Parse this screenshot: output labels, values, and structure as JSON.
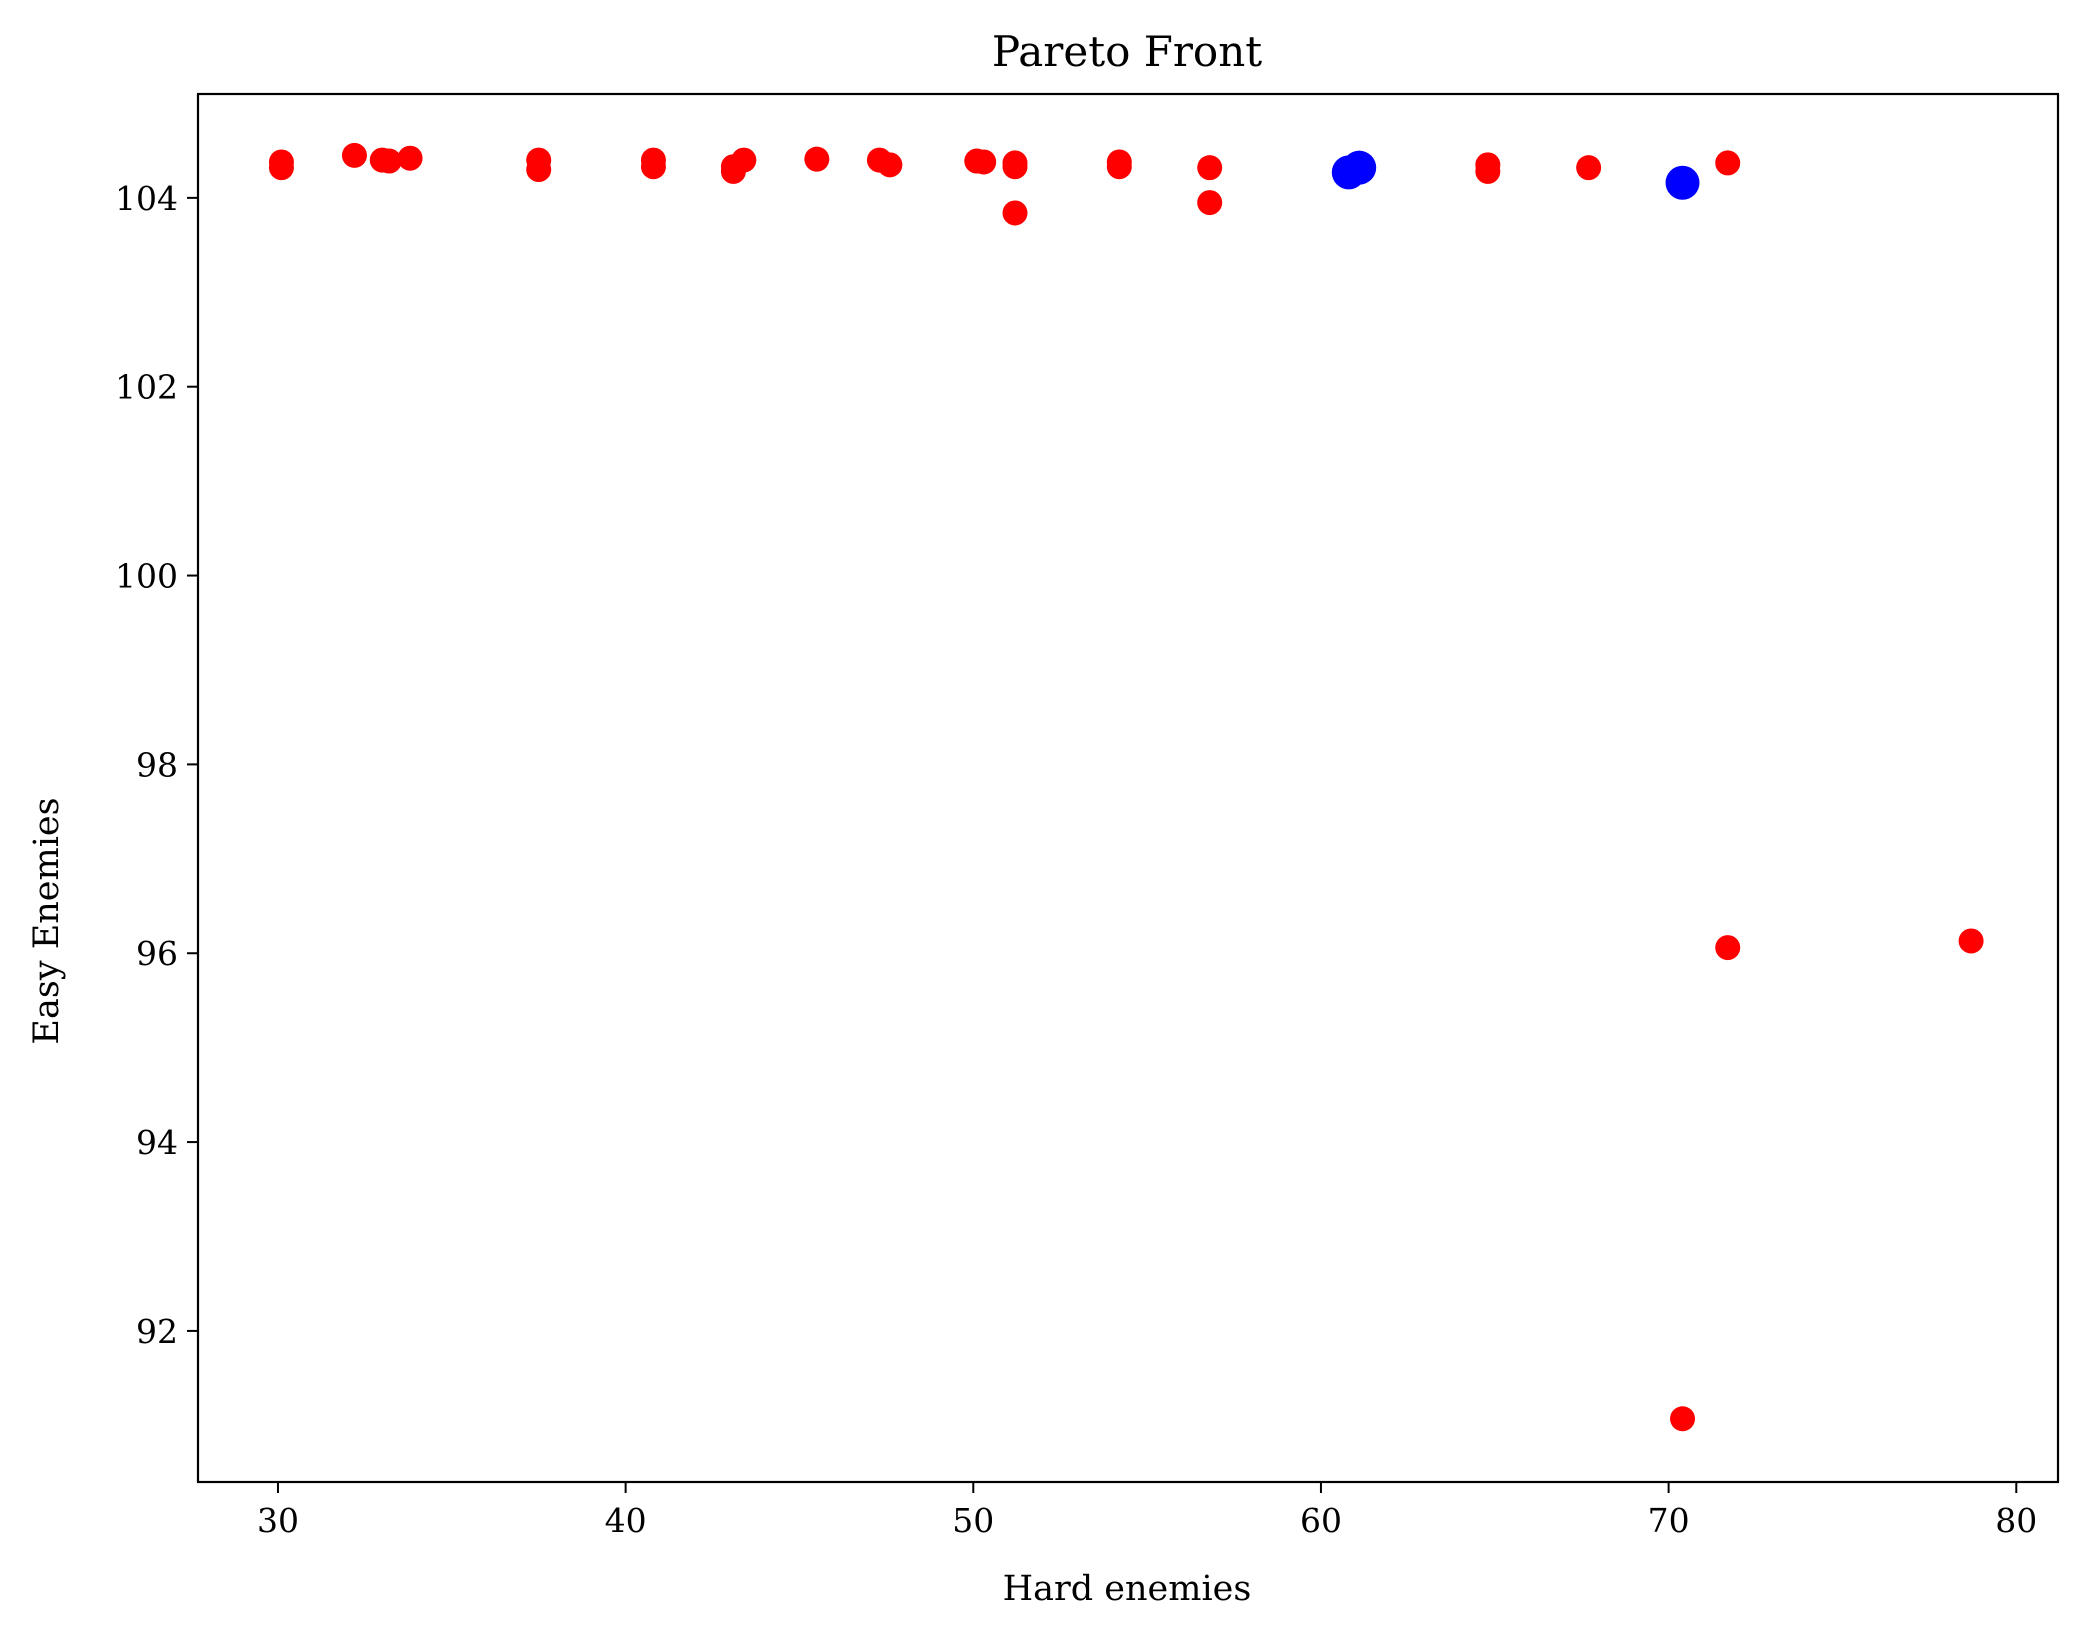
{
  "chart_data": {
    "type": "scatter",
    "title": "Pareto Front",
    "xlabel": "Hard enemies",
    "ylabel": "Easy Enemies",
    "xlim": [
      27.7,
      81.2
    ],
    "ylim": [
      90.4,
      105.1
    ],
    "xticks": [
      30,
      40,
      50,
      60,
      70,
      80
    ],
    "yticks": [
      92,
      94,
      96,
      98,
      100,
      102,
      104
    ],
    "grid": false,
    "series": [
      {
        "color": "#ff0000",
        "marker_size": "small",
        "points": [
          [
            30.1,
            104.38
          ],
          [
            30.1,
            104.32
          ],
          [
            32.2,
            104.45
          ],
          [
            33.0,
            104.4
          ],
          [
            33.2,
            104.39
          ],
          [
            33.8,
            104.42
          ],
          [
            37.5,
            104.4
          ],
          [
            37.5,
            104.3
          ],
          [
            40.8,
            104.4
          ],
          [
            40.8,
            104.33
          ],
          [
            43.1,
            104.33
          ],
          [
            43.1,
            104.28
          ],
          [
            43.4,
            104.4
          ],
          [
            45.5,
            104.41
          ],
          [
            47.3,
            104.4
          ],
          [
            47.6,
            104.35
          ],
          [
            50.1,
            104.39
          ],
          [
            50.3,
            104.38
          ],
          [
            51.2,
            104.37
          ],
          [
            51.2,
            104.33
          ],
          [
            51.2,
            103.84
          ],
          [
            54.2,
            104.38
          ],
          [
            54.2,
            104.33
          ],
          [
            56.8,
            104.32
          ],
          [
            56.8,
            103.95
          ],
          [
            64.8,
            104.35
          ],
          [
            64.8,
            104.28
          ],
          [
            67.7,
            104.32
          ],
          [
            71.7,
            104.37
          ],
          [
            71.7,
            96.06
          ],
          [
            78.7,
            96.13
          ],
          [
            70.4,
            91.07
          ]
        ]
      },
      {
        "color": "#0000ff",
        "marker_size": "large",
        "points": [
          [
            60.8,
            104.27
          ],
          [
            61.1,
            104.32
          ],
          [
            70.4,
            104.16
          ]
        ]
      }
    ]
  }
}
